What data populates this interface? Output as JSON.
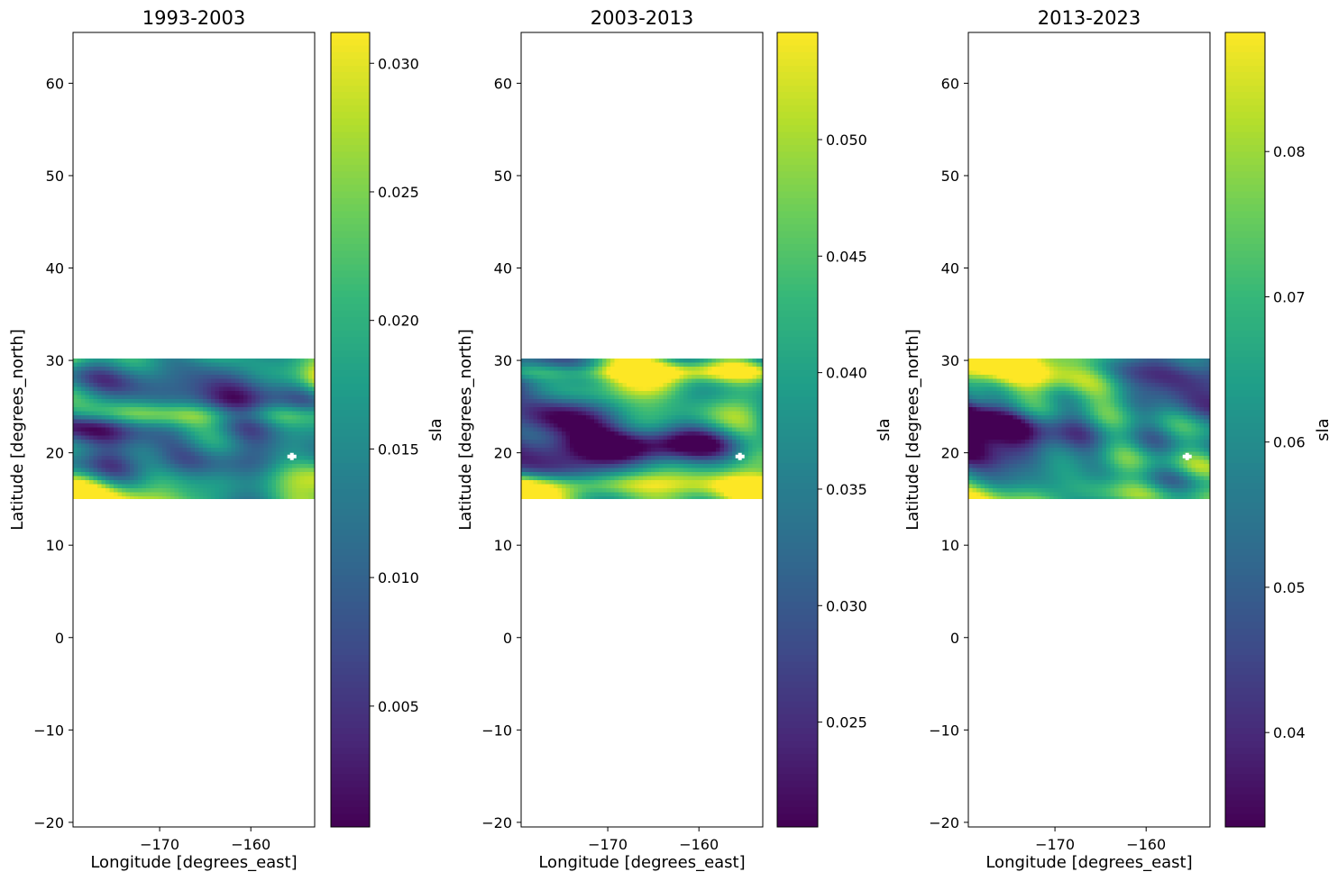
{
  "chart_data": [
    {
      "type": "heatmap",
      "title": "1993-2003",
      "xlabel": "Longitude [degrees_east]",
      "ylabel": "Latitude [degrees_north]",
      "xlim": [
        -179.5,
        -153.0
      ],
      "ylim": [
        -20.5,
        65.5
      ],
      "xticks": [
        -170,
        -160
      ],
      "yticks": [
        -20,
        -10,
        0,
        10,
        20,
        30,
        40,
        50,
        60
      ],
      "data_extent": {
        "lon": [
          -179.5,
          -153.0
        ],
        "lat": [
          15.0,
          30.2
        ]
      },
      "masked_point": {
        "lon": -155.5,
        "lat": 19.6
      },
      "colormap": "viridis",
      "colorbar": {
        "label": "sla",
        "vmin": 0.0003,
        "vmax": 0.0312,
        "ticks": [
          0.005,
          0.01,
          0.015,
          0.02,
          0.025,
          0.03
        ],
        "tick_labels": [
          "0.005",
          "0.010",
          "0.015",
          "0.020",
          "0.025",
          "0.030"
        ]
      },
      "grid": false
    },
    {
      "type": "heatmap",
      "title": "2003-2013",
      "xlabel": "Longitude [degrees_east]",
      "ylabel": "Latitude [degrees_north]",
      "xlim": [
        -179.5,
        -153.0
      ],
      "ylim": [
        -20.5,
        65.5
      ],
      "xticks": [
        -170,
        -160
      ],
      "yticks": [
        -20,
        -10,
        0,
        10,
        20,
        30,
        40,
        50,
        60
      ],
      "data_extent": {
        "lon": [
          -179.5,
          -153.0
        ],
        "lat": [
          15.0,
          30.2
        ]
      },
      "masked_point": {
        "lon": -155.5,
        "lat": 19.6
      },
      "colormap": "viridis",
      "colorbar": {
        "label": "sla",
        "vmin": 0.0205,
        "vmax": 0.0546,
        "ticks": [
          0.025,
          0.03,
          0.035,
          0.04,
          0.045,
          0.05
        ],
        "tick_labels": [
          "0.025",
          "0.030",
          "0.035",
          "0.040",
          "0.045",
          "0.050"
        ]
      },
      "grid": false
    },
    {
      "type": "heatmap",
      "title": "2013-2023",
      "xlabel": "Longitude [degrees_east]",
      "ylabel": "Latitude [degrees_north]",
      "xlim": [
        -179.5,
        -153.0
      ],
      "ylim": [
        -20.5,
        65.5
      ],
      "xticks": [
        -170,
        -160
      ],
      "yticks": [
        -20,
        -10,
        0,
        10,
        20,
        30,
        40,
        50,
        60
      ],
      "data_extent": {
        "lon": [
          -179.5,
          -153.0
        ],
        "lat": [
          15.0,
          30.2
        ]
      },
      "masked_point": {
        "lon": -155.5,
        "lat": 19.6
      },
      "colormap": "viridis",
      "colorbar": {
        "label": "sla",
        "vmin": 0.0335,
        "vmax": 0.0882,
        "ticks": [
          0.04,
          0.05,
          0.06,
          0.07,
          0.08
        ],
        "tick_labels": [
          "0.04",
          "0.05",
          "0.06",
          "0.07",
          "0.08"
        ]
      },
      "grid": false
    }
  ]
}
